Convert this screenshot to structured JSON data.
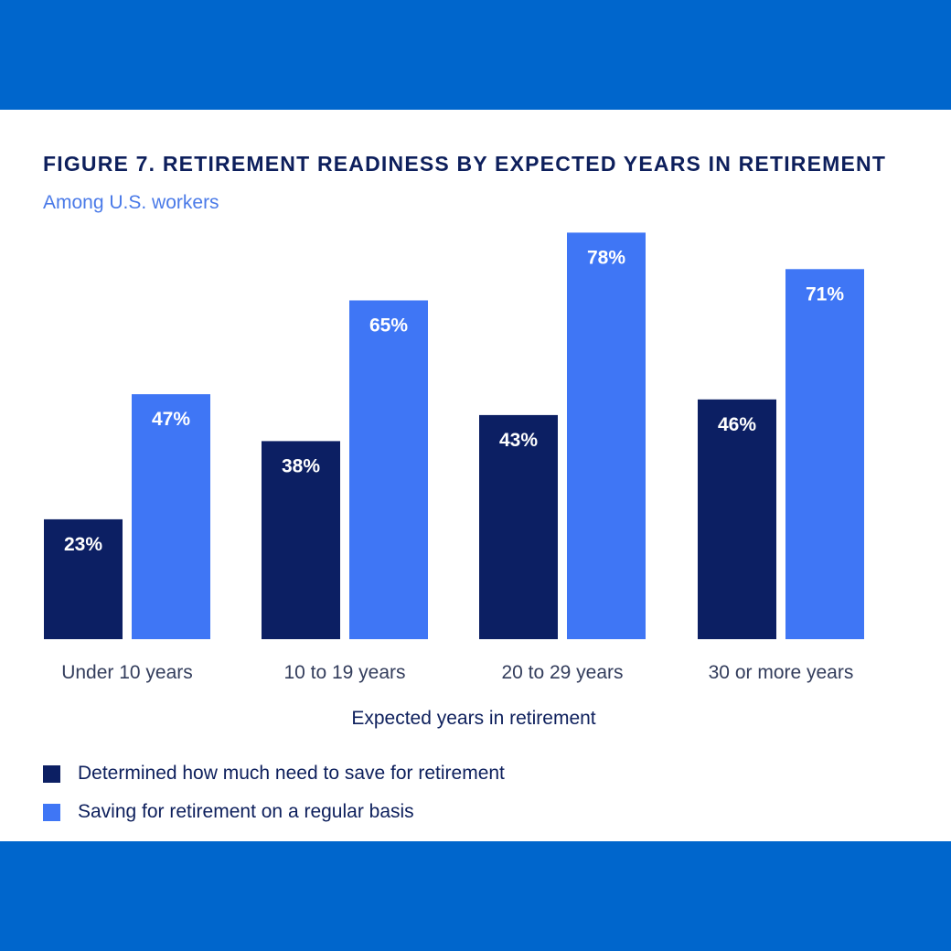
{
  "colors": {
    "band": "#0066cc",
    "title": "#0d1f5c",
    "subtitle": "#4a7ae8",
    "series_dark": "#0c1f63",
    "series_light": "#3f76f5",
    "axis_text": "#333d5c",
    "bar_label": "#ffffff"
  },
  "chart_data": {
    "type": "bar",
    "title": "FIGURE 7. RETIREMENT READINESS BY EXPECTED YEARS IN RETIREMENT",
    "subtitle": "Among U.S. workers",
    "xlabel": "Expected years in retirement",
    "ylabel": "",
    "ylim": [
      0,
      80
    ],
    "grid": false,
    "legend_position": "bottom-left",
    "categories": [
      "Under 10 years",
      "10 to 19 years",
      "20 to 29 years",
      "30 or more years"
    ],
    "series": [
      {
        "name": "Determined how much need to save for retirement",
        "values": [
          23,
          38,
          43,
          46
        ],
        "labels": [
          "23%",
          "38%",
          "43%",
          "46%"
        ]
      },
      {
        "name": "Saving for retirement on a regular basis",
        "values": [
          47,
          65,
          78,
          71
        ],
        "labels": [
          "47%",
          "65%",
          "78%",
          "71%"
        ]
      }
    ]
  }
}
